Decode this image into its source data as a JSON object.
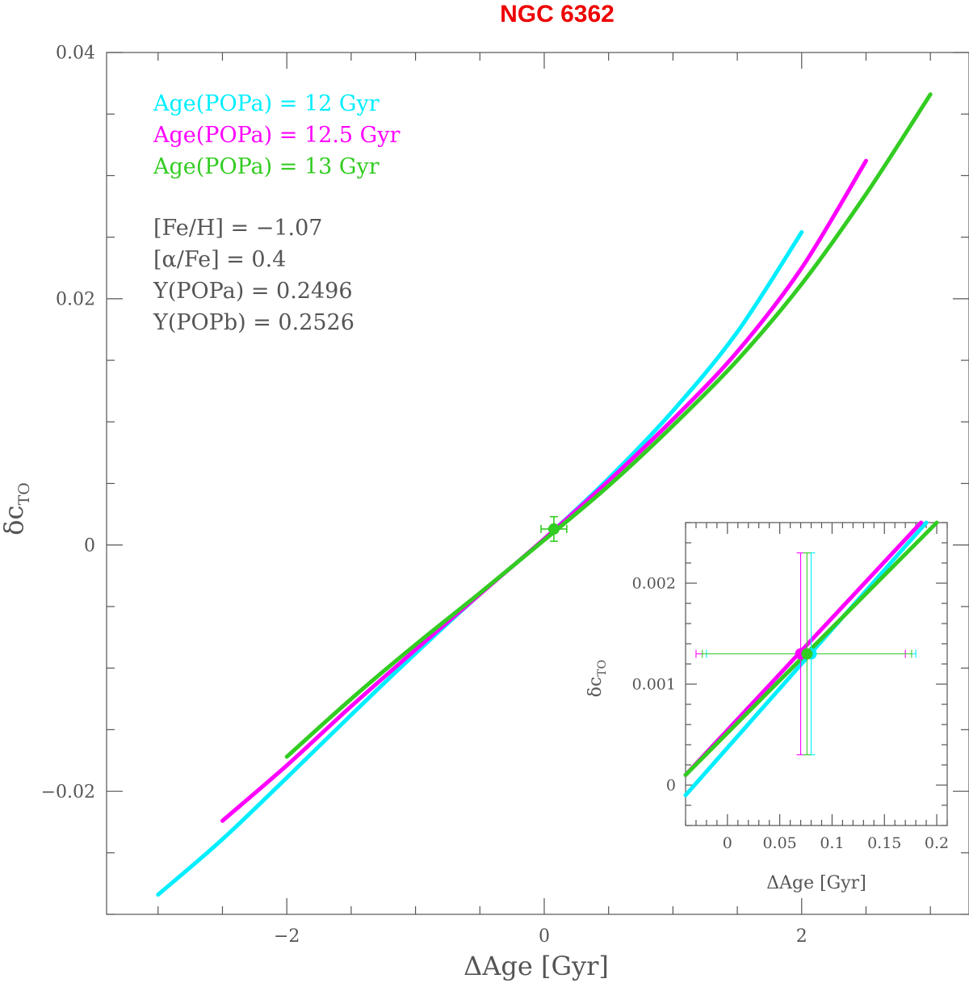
{
  "chart_data": {
    "type": "line",
    "title": "NGC 6362",
    "xlabel": "ΔAge [Gyr]",
    "ylabel": "δc",
    "ylabel_sub": "TO",
    "xlim": [
      -3.4,
      3.3
    ],
    "ylim": [
      -0.03,
      0.04
    ],
    "xticks": [
      -2,
      0,
      2
    ],
    "yticks": [
      -0.02,
      0,
      0.02,
      0.04
    ],
    "ytick_labels": [
      "−0.02",
      "0",
      "0.02",
      "0.04"
    ],
    "xtick_labels": [
      "−2",
      "0",
      "2"
    ],
    "grid": false,
    "legend_position": "top-left",
    "series": [
      {
        "name": "Age(POPa) = 12 Gyr",
        "color": "#00eeff",
        "x": [
          -3.0,
          -2.5,
          -2.0,
          -1.5,
          -1.0,
          -0.5,
          0.0,
          0.5,
          1.0,
          1.5,
          2.0
        ],
        "y": [
          -0.0284,
          -0.0239,
          -0.0189,
          -0.0138,
          -0.0088,
          -0.004,
          0.0005,
          0.0054,
          0.0109,
          0.0173,
          0.0254
        ]
      },
      {
        "name": "Age(POPa) = 12.5 Gyr",
        "color": "#ff00ff",
        "x": [
          -2.5,
          -2.0,
          -1.5,
          -1.0,
          -0.5,
          0.0,
          0.5,
          1.0,
          1.5,
          2.0,
          2.5
        ],
        "y": [
          -0.0224,
          -0.0179,
          -0.0131,
          -0.0085,
          -0.004,
          0.0005,
          0.0052,
          0.0102,
          0.0157,
          0.0225,
          0.0312
        ]
      },
      {
        "name": "Age(POPa) = 13 Gyr",
        "color": "#33cc22",
        "x": [
          -2.0,
          -1.5,
          -1.0,
          -0.5,
          0.0,
          0.5,
          1.0,
          1.5,
          2.0,
          2.5,
          3.0
        ],
        "y": [
          -0.0172,
          -0.0125,
          -0.0081,
          -0.0039,
          0.0004,
          0.0048,
          0.0097,
          0.015,
          0.0212,
          0.0285,
          0.0366
        ]
      }
    ],
    "measurement": {
      "x": 0.075,
      "y": 0.0013,
      "xerr": 0.1,
      "yerr": 0.001,
      "color": "#33cc22"
    },
    "annotations": [
      "[Fe/H] = −1.07",
      "[α/Fe] = 0.4",
      "Y(POPa) = 0.2496",
      "Y(POPb) = 0.2526"
    ],
    "inset": {
      "xlabel": "ΔAge [Gyr]",
      "ylabel": "δc",
      "ylabel_sub": "TO",
      "xlim": [
        -0.04,
        0.21
      ],
      "ylim": [
        -0.0004,
        0.0026
      ],
      "xticks": [
        0,
        0.05,
        0.1,
        0.15,
        0.2
      ],
      "xtick_labels": [
        "0",
        "0.05",
        "0.1",
        "0.15",
        "0.2"
      ],
      "yticks": [
        0,
        0.001,
        0.002
      ],
      "ytick_labels": [
        "0",
        "0.001",
        "0.002"
      ],
      "lines": [
        {
          "color": "#00eeff",
          "x": [
            -0.04,
            0.19
          ],
          "y": [
            -0.0001,
            0.0026
          ]
        },
        {
          "color": "#ff00ff",
          "x": [
            -0.04,
            0.185
          ],
          "y": [
            0.0001,
            0.0026
          ]
        },
        {
          "color": "#33cc22",
          "x": [
            -0.04,
            0.2
          ],
          "y": [
            0.0001,
            0.0026
          ]
        }
      ],
      "points": [
        {
          "color": "#ff00ff",
          "x": 0.07,
          "y": 0.0013,
          "xerr": 0.1,
          "yerr": 0.001
        },
        {
          "color": "#00eeff",
          "x": 0.08,
          "y": 0.0013,
          "xerr": 0.1,
          "yerr": 0.001
        },
        {
          "color": "#33cc22",
          "x": 0.076,
          "y": 0.0013,
          "xerr": 0.1,
          "yerr": 0.001
        }
      ]
    }
  }
}
